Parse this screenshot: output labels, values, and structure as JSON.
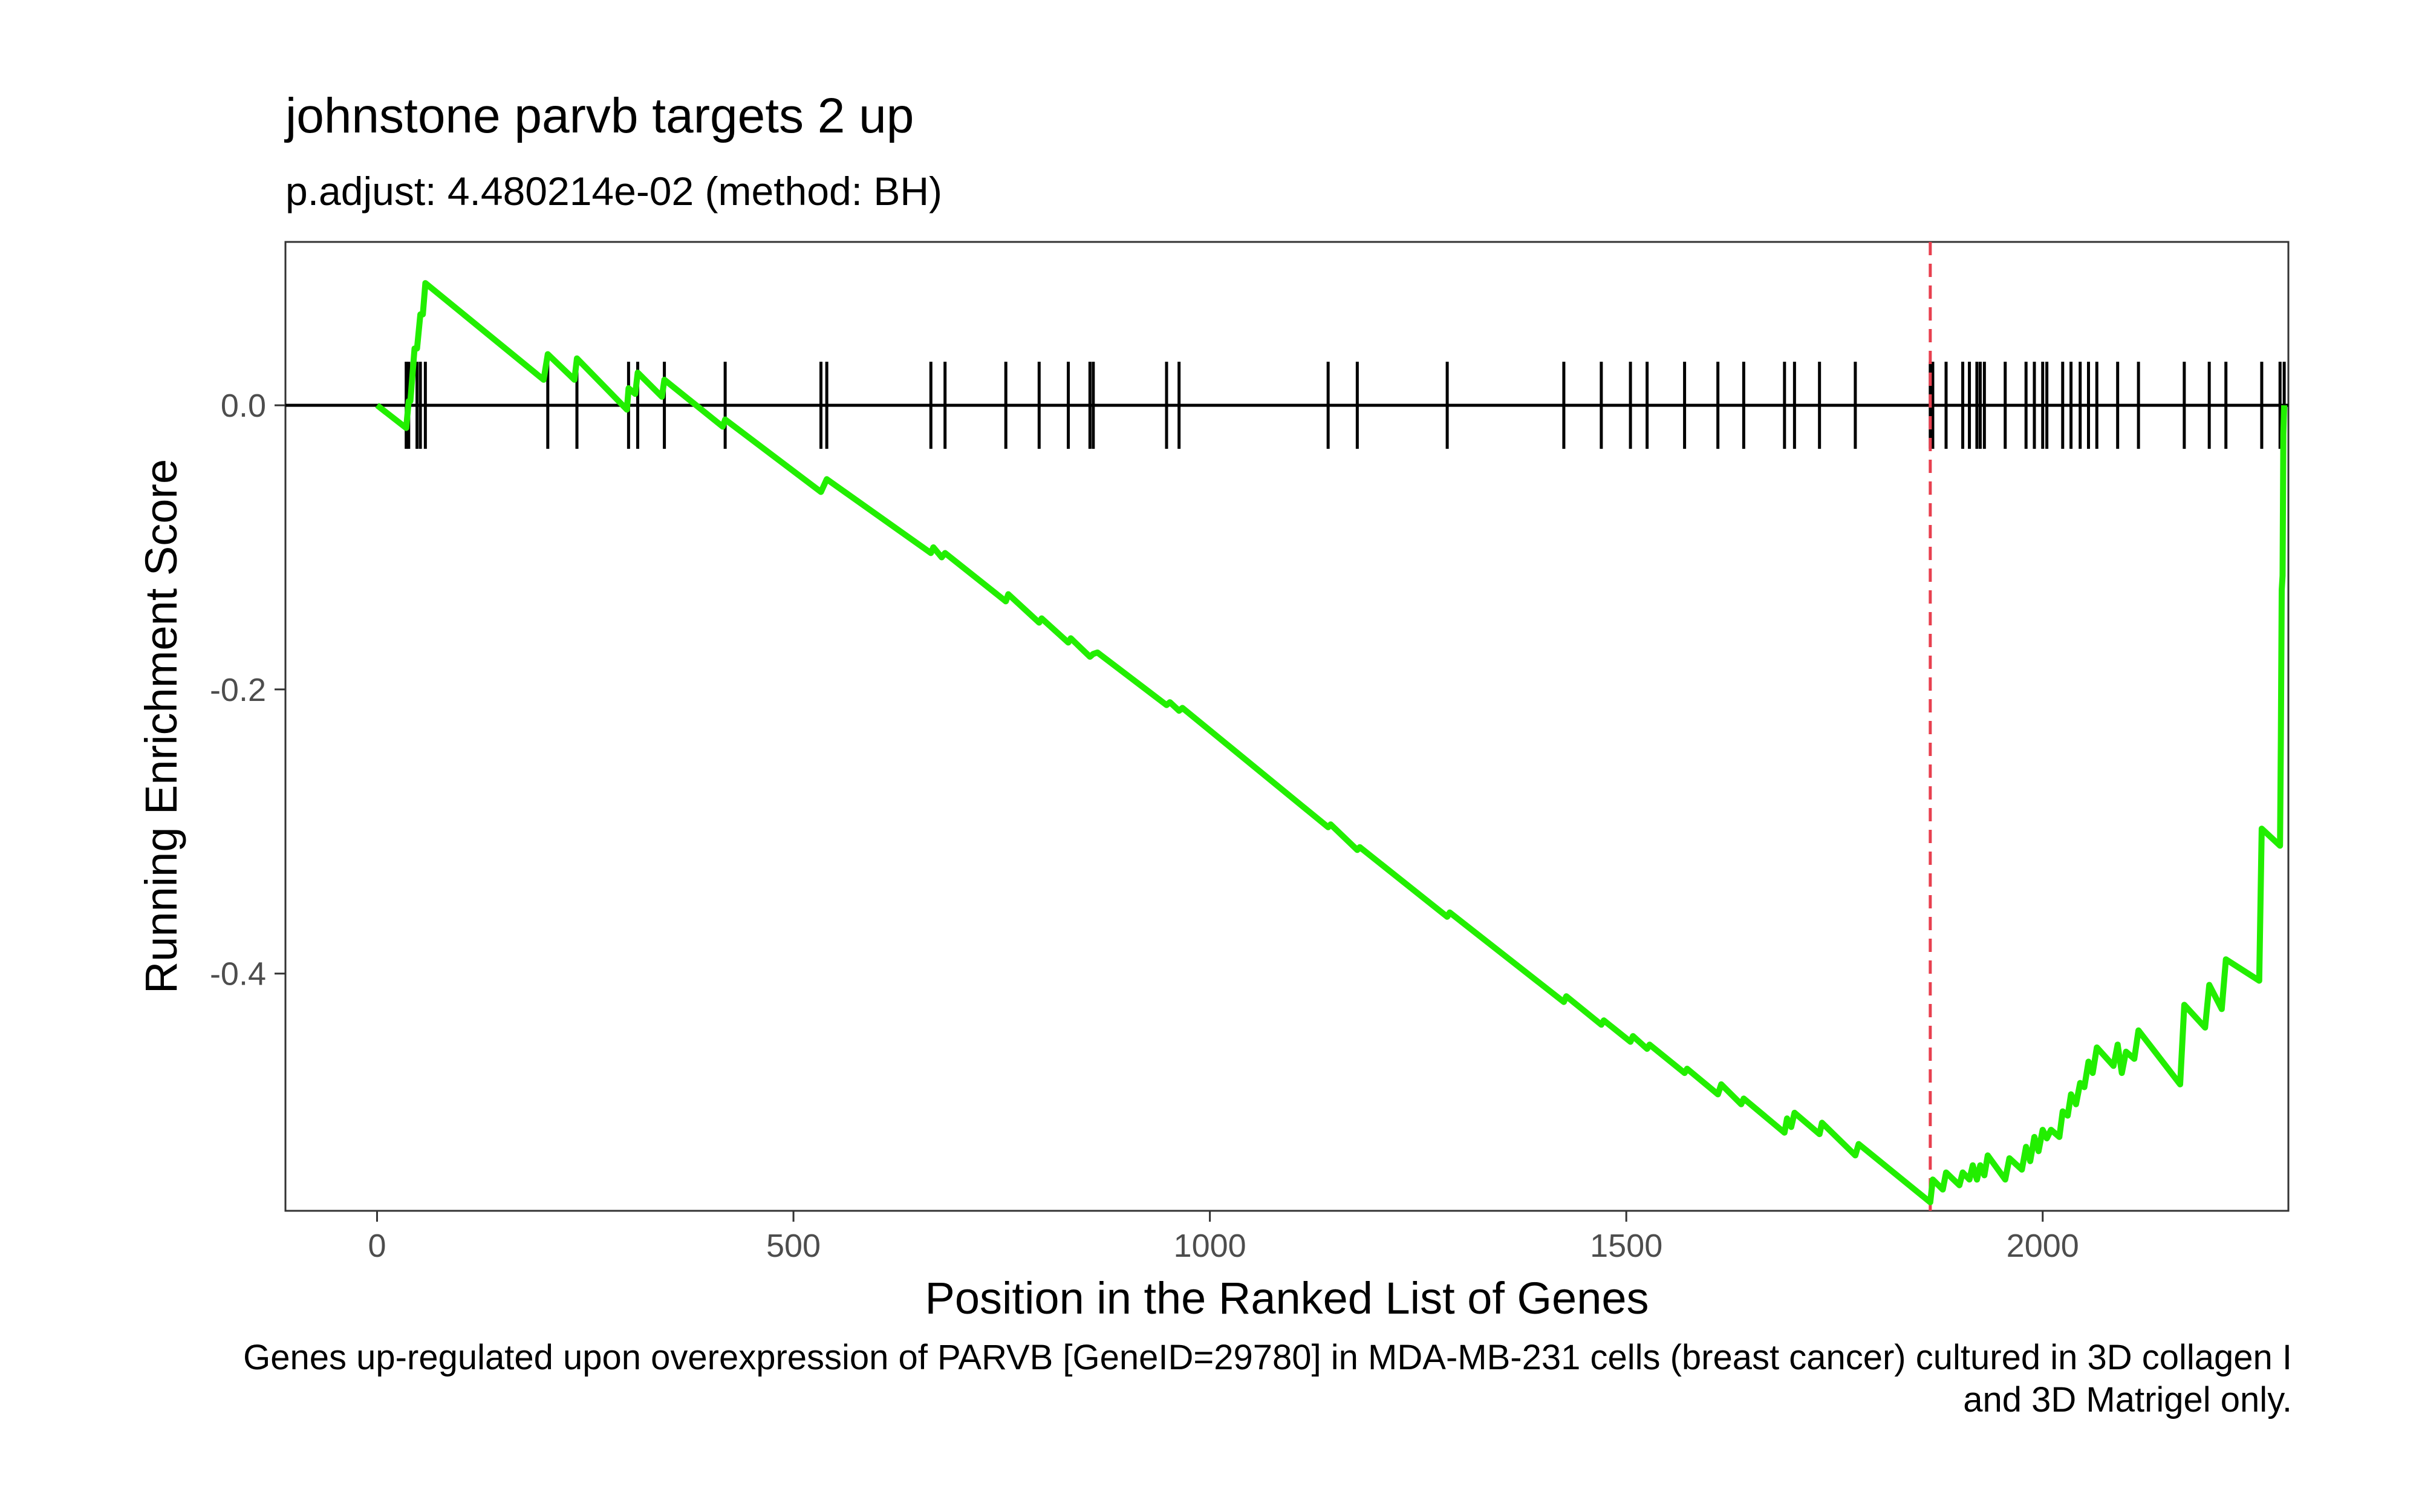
{
  "chart_data": {
    "type": "line",
    "title": "johnstone parvb targets 2 up",
    "subtitle": "p.adjust: 4.480214e-02 (method: BH)",
    "xlabel": "Position in the Ranked List of Genes",
    "ylabel": "Running Enrichment Score",
    "caption": "Genes up-regulated upon overexpression of PARVB [GeneID=29780] in MDA-MB-231 cells (breast cancer) cultured in 3D collagen I and 3D Matrigel only.",
    "xlim": [
      -110,
      2295
    ],
    "ylim": [
      -0.567,
      0.115
    ],
    "x_ticks": [
      0,
      500,
      1000,
      1500,
      2000
    ],
    "x_tick_labels": [
      "0",
      "500",
      "1000",
      "1500",
      "2000"
    ],
    "y_ticks": [
      0.0,
      -0.2,
      -0.4
    ],
    "y_tick_labels": [
      "0.0",
      "-0.2",
      "-0.4"
    ],
    "line_color": "#22ee00",
    "reference_line": {
      "y": 0.0,
      "color": "#000000"
    },
    "max_deviation_line": {
      "x": 1865,
      "color": "#e8404f",
      "style": "dashed"
    },
    "series": [
      {
        "x": [
          0,
          35,
          38,
          40,
          45,
          48,
          52,
          55,
          58,
          200,
          205,
          237,
          240,
          300,
          302,
          310,
          313,
          342,
          345,
          415,
          418,
          533,
          540,
          665,
          668,
          678,
          682,
          755,
          758,
          795,
          798,
          830,
          833,
          856,
          860,
          865,
          948,
          952,
          963,
          967,
          1142,
          1145,
          1177,
          1180,
          1285,
          1288,
          1425,
          1428,
          1470,
          1473,
          1505,
          1508,
          1525,
          1528,
          1570,
          1573,
          1610,
          1614,
          1638,
          1641,
          1690,
          1693,
          1698,
          1702,
          1732,
          1735,
          1775,
          1779,
          1865,
          1868,
          1880,
          1884,
          1900,
          1904,
          1912,
          1916,
          1921,
          1925,
          1930,
          1934,
          1955,
          1960,
          1975,
          1980,
          1985,
          1990,
          1995,
          2000,
          2005,
          2010,
          2020,
          2024,
          2030,
          2034,
          2040,
          2045,
          2050,
          2055,
          2060,
          2065,
          2085,
          2090,
          2095,
          2100,
          2110,
          2115,
          2165,
          2170,
          2195,
          2200,
          2215,
          2220,
          2260,
          2263,
          2285,
          2286,
          2287,
          2288,
          2289,
          2290
        ],
        "y": [
          0.0,
          -0.016,
          0.003,
          0.003,
          0.04,
          0.04,
          0.064,
          0.064,
          0.086,
          0.018,
          0.036,
          0.018,
          0.033,
          -0.003,
          0.012,
          0.008,
          0.023,
          0.006,
          0.018,
          -0.015,
          -0.01,
          -0.061,
          -0.052,
          -0.104,
          -0.1,
          -0.107,
          -0.104,
          -0.138,
          -0.133,
          -0.153,
          -0.15,
          -0.167,
          -0.164,
          -0.177,
          -0.175,
          -0.174,
          -0.211,
          -0.209,
          -0.215,
          -0.213,
          -0.297,
          -0.295,
          -0.313,
          -0.311,
          -0.36,
          -0.357,
          -0.42,
          -0.416,
          -0.436,
          -0.433,
          -0.448,
          -0.444,
          -0.453,
          -0.45,
          -0.47,
          -0.467,
          -0.485,
          -0.478,
          -0.492,
          -0.488,
          -0.512,
          -0.502,
          -0.508,
          -0.498,
          -0.513,
          -0.505,
          -0.528,
          -0.52,
          -0.561,
          -0.545,
          -0.552,
          -0.54,
          -0.549,
          -0.54,
          -0.545,
          -0.535,
          -0.545,
          -0.535,
          -0.542,
          -0.528,
          -0.545,
          -0.53,
          -0.538,
          -0.522,
          -0.532,
          -0.515,
          -0.525,
          -0.51,
          -0.516,
          -0.51,
          -0.515,
          -0.497,
          -0.5,
          -0.485,
          -0.492,
          -0.477,
          -0.48,
          -0.462,
          -0.47,
          -0.452,
          -0.465,
          -0.45,
          -0.47,
          -0.455,
          -0.46,
          -0.44,
          -0.478,
          -0.422,
          -0.438,
          -0.408,
          -0.425,
          -0.39,
          -0.405,
          -0.298,
          -0.31,
          -0.234,
          -0.13,
          -0.12,
          -0.02,
          0.0
        ]
      }
    ],
    "gene_hits": [
      35,
      38,
      48,
      52,
      58,
      205,
      240,
      302,
      313,
      345,
      418,
      533,
      540,
      665,
      682,
      755,
      795,
      830,
      856,
      860,
      948,
      963,
      1142,
      1177,
      1285,
      1425,
      1470,
      1505,
      1525,
      1570,
      1610,
      1641,
      1690,
      1702,
      1732,
      1775,
      1865,
      1868,
      1884,
      1904,
      1912,
      1921,
      1925,
      1930,
      1955,
      1980,
      1990,
      2000,
      2005,
      2024,
      2034,
      2045,
      2055,
      2065,
      2090,
      2115,
      2170,
      2200,
      2220,
      2263,
      2285,
      2290
    ]
  }
}
